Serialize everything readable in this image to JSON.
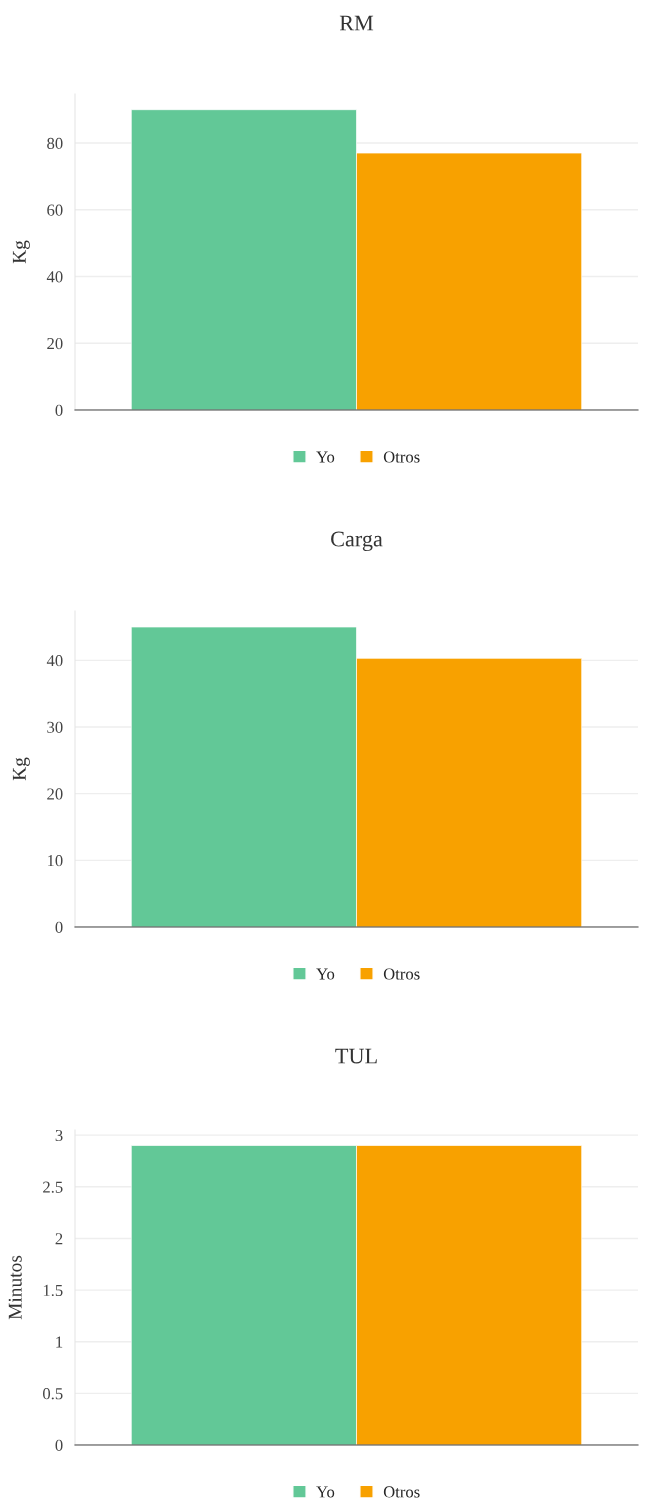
{
  "chart_data": [
    {
      "type": "bar",
      "title": "RM",
      "ylabel": "Kg",
      "categories": [
        null
      ],
      "series": [
        {
          "name": "Yo",
          "color": "#62c897",
          "values": [
            90
          ]
        },
        {
          "name": "Otros",
          "color": "#f8a100",
          "values": [
            77
          ]
        }
      ],
      "ylim": [
        0,
        94.7
      ],
      "yticks": [
        0,
        20,
        40,
        60,
        80
      ],
      "grid": "y",
      "legend": "bottom"
    },
    {
      "type": "bar",
      "title": "Carga",
      "ylabel": "Kg",
      "categories": [
        null
      ],
      "series": [
        {
          "name": "Yo",
          "color": "#62c897",
          "values": [
            45
          ]
        },
        {
          "name": "Otros",
          "color": "#f8a100",
          "values": [
            40.3
          ]
        }
      ],
      "ylim": [
        0,
        47.4
      ],
      "yticks": [
        0,
        10,
        20,
        30,
        40
      ],
      "grid": "y",
      "legend": "bottom"
    },
    {
      "type": "bar",
      "title": "TUL",
      "ylabel": "Minutos",
      "categories": [
        null
      ],
      "series": [
        {
          "name": "Yo",
          "color": "#62c897",
          "values": [
            2.9
          ]
        },
        {
          "name": "Otros",
          "color": "#f8a100",
          "values": [
            2.9
          ]
        }
      ],
      "ylim": [
        0,
        3.05
      ],
      "yticks": [
        0,
        0.5,
        1,
        1.5,
        2,
        2.5,
        3
      ],
      "grid": "y",
      "legend": "bottom"
    }
  ]
}
